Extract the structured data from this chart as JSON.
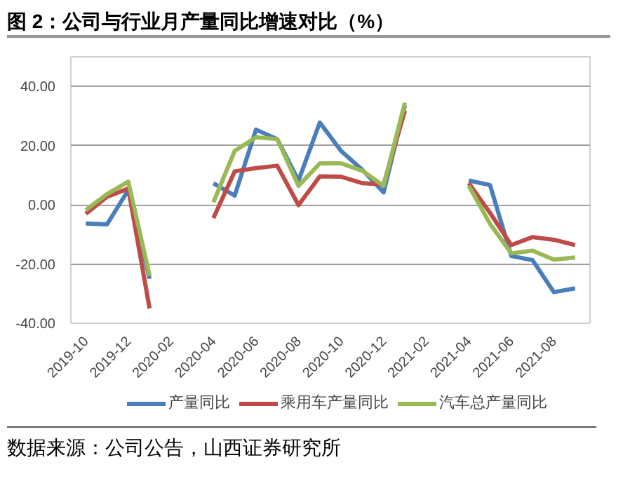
{
  "chart_data": {
    "type": "line",
    "title": "图 2：公司与行业月产量同比增速对比（%）",
    "categories": [
      "2019-10",
      null,
      "2019-12",
      null,
      "2020-02",
      null,
      "2020-04",
      null,
      "2020-06",
      null,
      "2020-08",
      null,
      "2020-10",
      null,
      "2020-12",
      null,
      "2021-02",
      null,
      "2021-04",
      null,
      "2021-06",
      null,
      "2021-08",
      null
    ],
    "series": [
      {
        "name": "产量同比",
        "color": "#4a7ebb",
        "values": [
          -6.3,
          -6.6,
          5,
          -25,
          null,
          null,
          7.3,
          3.1,
          25.4,
          22.2,
          8.2,
          27.8,
          18.2,
          11.8,
          4.2,
          33.6,
          null,
          null,
          8.2,
          6.7,
          -17.3,
          -18.7,
          -29.5,
          -28.2
        ]
      },
      {
        "name": "乘用车产量同比",
        "color": "#be4b48",
        "values": [
          -3,
          2.7,
          5.5,
          -35,
          null,
          null,
          -4.5,
          11.3,
          12.4,
          13.2,
          -0.1,
          9.6,
          9.5,
          7.3,
          6.9,
          31.8,
          null,
          null,
          7.3,
          -2.7,
          -13.6,
          -10.9,
          -11.8,
          -13.6
        ]
      },
      {
        "name": "汽车总产量同比",
        "color": "#98b954",
        "values": [
          -1.8,
          3.6,
          7.8,
          -24,
          null,
          null,
          0.9,
          18.2,
          22.8,
          22.2,
          6.4,
          14,
          14,
          11.5,
          6.4,
          34.5,
          null,
          null,
          6.4,
          -6.4,
          -16.4,
          -15.5,
          -18.5,
          -17.8
        ]
      }
    ],
    "ylim": [
      -40,
      50
    ],
    "yticks": [
      {
        "value": -40,
        "label": "-40.00"
      },
      {
        "value": -20,
        "label": "-20.00"
      },
      {
        "value": 0,
        "label": "0.00"
      },
      {
        "value": 20,
        "label": "20.00"
      },
      {
        "value": 40,
        "label": "40.00"
      }
    ],
    "grid": "y",
    "legend": "bottom",
    "marker": "none",
    "line_style": "solid",
    "annotations": [
      "数据来源：公司公告，山西证券研究所"
    ]
  }
}
